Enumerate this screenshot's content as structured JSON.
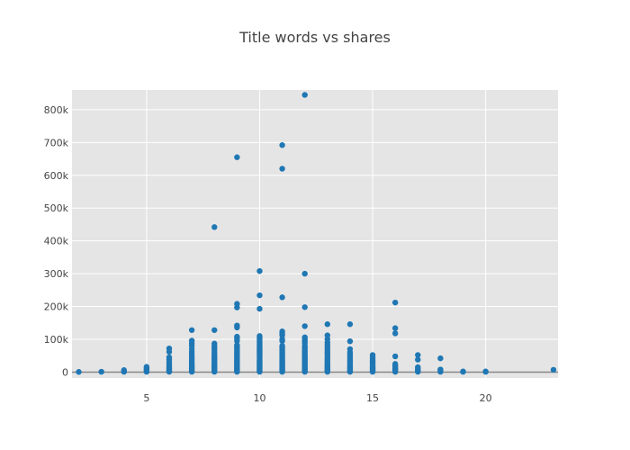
{
  "chart_data": {
    "type": "scatter",
    "title": "Title words vs shares",
    "xlabel": "",
    "ylabel": "",
    "xlim": [
      1.7,
      23.2
    ],
    "ylim": [
      -18000,
      860000
    ],
    "grid": true,
    "x_ticks": [
      5,
      10,
      15,
      20
    ],
    "x_tick_labels": [
      "5",
      "10",
      "15",
      "20"
    ],
    "y_ticks": [
      0,
      100000,
      200000,
      300000,
      400000,
      500000,
      600000,
      700000,
      800000
    ],
    "y_tick_labels": [
      "0",
      "100k",
      "200k",
      "300k",
      "400k",
      "500k",
      "600k",
      "700k",
      "800k"
    ],
    "series": [
      {
        "color": "#1f77b4",
        "points": [
          [
            2,
            500
          ],
          [
            3,
            1000
          ],
          [
            4,
            1000
          ],
          [
            4,
            3000
          ],
          [
            4,
            6000
          ],
          [
            5,
            1000
          ],
          [
            5,
            3000
          ],
          [
            5,
            5000
          ],
          [
            5,
            8000
          ],
          [
            5,
            12000
          ],
          [
            5,
            16000
          ],
          [
            6,
            1000
          ],
          [
            6,
            4000
          ],
          [
            6,
            8000
          ],
          [
            6,
            12000
          ],
          [
            6,
            17000
          ],
          [
            6,
            23000
          ],
          [
            6,
            30000
          ],
          [
            6,
            38000
          ],
          [
            6,
            45000
          ],
          [
            6,
            62000
          ],
          [
            6,
            72000
          ],
          [
            7,
            1000
          ],
          [
            7,
            4000
          ],
          [
            7,
            8000
          ],
          [
            7,
            12000
          ],
          [
            7,
            16000
          ],
          [
            7,
            20000
          ],
          [
            7,
            25000
          ],
          [
            7,
            30000
          ],
          [
            7,
            36000
          ],
          [
            7,
            42000
          ],
          [
            7,
            48000
          ],
          [
            7,
            55000
          ],
          [
            7,
            62000
          ],
          [
            7,
            70000
          ],
          [
            7,
            80000
          ],
          [
            7,
            88000
          ],
          [
            7,
            96000
          ],
          [
            7,
            128000
          ],
          [
            8,
            1000
          ],
          [
            8,
            3000
          ],
          [
            8,
            6000
          ],
          [
            8,
            9000
          ],
          [
            8,
            12000
          ],
          [
            8,
            15000
          ],
          [
            8,
            18000
          ],
          [
            8,
            21000
          ],
          [
            8,
            25000
          ],
          [
            8,
            29000
          ],
          [
            8,
            33000
          ],
          [
            8,
            37000
          ],
          [
            8,
            41000
          ],
          [
            8,
            46000
          ],
          [
            8,
            51000
          ],
          [
            8,
            56000
          ],
          [
            8,
            62000
          ],
          [
            8,
            68000
          ],
          [
            8,
            74000
          ],
          [
            8,
            80000
          ],
          [
            8,
            87000
          ],
          [
            8,
            128000
          ],
          [
            8,
            442000
          ],
          [
            9,
            1000
          ],
          [
            9,
            3000
          ],
          [
            9,
            6000
          ],
          [
            9,
            9000
          ],
          [
            9,
            12000
          ],
          [
            9,
            15000
          ],
          [
            9,
            18000
          ],
          [
            9,
            21000
          ],
          [
            9,
            24000
          ],
          [
            9,
            27000
          ],
          [
            9,
            30000
          ],
          [
            9,
            34000
          ],
          [
            9,
            38000
          ],
          [
            9,
            42000
          ],
          [
            9,
            46000
          ],
          [
            9,
            50000
          ],
          [
            9,
            54000
          ],
          [
            9,
            58000
          ],
          [
            9,
            62000
          ],
          [
            9,
            66000
          ],
          [
            9,
            70000
          ],
          [
            9,
            74000
          ],
          [
            9,
            78000
          ],
          [
            9,
            82000
          ],
          [
            9,
            95000
          ],
          [
            9,
            102000
          ],
          [
            9,
            108000
          ],
          [
            9,
            136000
          ],
          [
            9,
            142000
          ],
          [
            9,
            197000
          ],
          [
            9,
            208000
          ],
          [
            9,
            655000
          ],
          [
            10,
            1000
          ],
          [
            10,
            3000
          ],
          [
            10,
            6000
          ],
          [
            10,
            9000
          ],
          [
            10,
            12000
          ],
          [
            10,
            15000
          ],
          [
            10,
            18000
          ],
          [
            10,
            21000
          ],
          [
            10,
            24000
          ],
          [
            10,
            27000
          ],
          [
            10,
            30000
          ],
          [
            10,
            33000
          ],
          [
            10,
            36000
          ],
          [
            10,
            40000
          ],
          [
            10,
            44000
          ],
          [
            10,
            48000
          ],
          [
            10,
            52000
          ],
          [
            10,
            56000
          ],
          [
            10,
            60000
          ],
          [
            10,
            64000
          ],
          [
            10,
            68000
          ],
          [
            10,
            72000
          ],
          [
            10,
            76000
          ],
          [
            10,
            80000
          ],
          [
            10,
            84000
          ],
          [
            10,
            90000
          ],
          [
            10,
            95000
          ],
          [
            10,
            100000
          ],
          [
            10,
            105000
          ],
          [
            10,
            110000
          ],
          [
            10,
            193000
          ],
          [
            10,
            234000
          ],
          [
            10,
            308000
          ],
          [
            11,
            1000
          ],
          [
            11,
            3000
          ],
          [
            11,
            6000
          ],
          [
            11,
            9000
          ],
          [
            11,
            12000
          ],
          [
            11,
            15000
          ],
          [
            11,
            18000
          ],
          [
            11,
            21000
          ],
          [
            11,
            24000
          ],
          [
            11,
            27000
          ],
          [
            11,
            30000
          ],
          [
            11,
            34000
          ],
          [
            11,
            38000
          ],
          [
            11,
            42000
          ],
          [
            11,
            46000
          ],
          [
            11,
            50000
          ],
          [
            11,
            54000
          ],
          [
            11,
            58000
          ],
          [
            11,
            62000
          ],
          [
            11,
            66000
          ],
          [
            11,
            70000
          ],
          [
            11,
            75000
          ],
          [
            11,
            80000
          ],
          [
            11,
            95000
          ],
          [
            11,
            100000
          ],
          [
            11,
            112000
          ],
          [
            11,
            118000
          ],
          [
            11,
            124000
          ],
          [
            11,
            228000
          ],
          [
            11,
            620000
          ],
          [
            11,
            692000
          ],
          [
            12,
            1000
          ],
          [
            12,
            3000
          ],
          [
            12,
            6000
          ],
          [
            12,
            9000
          ],
          [
            12,
            12000
          ],
          [
            12,
            15000
          ],
          [
            12,
            18000
          ],
          [
            12,
            22000
          ],
          [
            12,
            26000
          ],
          [
            12,
            30000
          ],
          [
            12,
            34000
          ],
          [
            12,
            38000
          ],
          [
            12,
            42000
          ],
          [
            12,
            46000
          ],
          [
            12,
            50000
          ],
          [
            12,
            55000
          ],
          [
            12,
            60000
          ],
          [
            12,
            65000
          ],
          [
            12,
            70000
          ],
          [
            12,
            75000
          ],
          [
            12,
            80000
          ],
          [
            12,
            88000
          ],
          [
            12,
            94000
          ],
          [
            12,
            100000
          ],
          [
            12,
            106000
          ],
          [
            12,
            140000
          ],
          [
            12,
            198000
          ],
          [
            12,
            300000
          ],
          [
            12,
            845000
          ],
          [
            13,
            1000
          ],
          [
            13,
            3000
          ],
          [
            13,
            6000
          ],
          [
            13,
            9000
          ],
          [
            13,
            12000
          ],
          [
            13,
            16000
          ],
          [
            13,
            20000
          ],
          [
            13,
            24000
          ],
          [
            13,
            28000
          ],
          [
            13,
            33000
          ],
          [
            13,
            38000
          ],
          [
            13,
            44000
          ],
          [
            13,
            50000
          ],
          [
            13,
            56000
          ],
          [
            13,
            62000
          ],
          [
            13,
            68000
          ],
          [
            13,
            75000
          ],
          [
            13,
            82000
          ],
          [
            13,
            90000
          ],
          [
            13,
            100000
          ],
          [
            13,
            112000
          ],
          [
            13,
            146000
          ],
          [
            14,
            1000
          ],
          [
            14,
            3000
          ],
          [
            14,
            6000
          ],
          [
            14,
            9000
          ],
          [
            14,
            12000
          ],
          [
            14,
            16000
          ],
          [
            14,
            20000
          ],
          [
            14,
            25000
          ],
          [
            14,
            30000
          ],
          [
            14,
            35000
          ],
          [
            14,
            41000
          ],
          [
            14,
            47000
          ],
          [
            14,
            53000
          ],
          [
            14,
            60000
          ],
          [
            14,
            70000
          ],
          [
            14,
            94000
          ],
          [
            14,
            146000
          ],
          [
            15,
            1000
          ],
          [
            15,
            3000
          ],
          [
            15,
            6000
          ],
          [
            15,
            9000
          ],
          [
            15,
            12000
          ],
          [
            15,
            15000
          ],
          [
            15,
            18000
          ],
          [
            15,
            22000
          ],
          [
            15,
            26000
          ],
          [
            15,
            30000
          ],
          [
            15,
            35000
          ],
          [
            15,
            40000
          ],
          [
            15,
            45000
          ],
          [
            15,
            52000
          ],
          [
            16,
            1000
          ],
          [
            16,
            3000
          ],
          [
            16,
            6000
          ],
          [
            16,
            9000
          ],
          [
            16,
            12000
          ],
          [
            16,
            16000
          ],
          [
            16,
            20000
          ],
          [
            16,
            25000
          ],
          [
            16,
            48000
          ],
          [
            16,
            118000
          ],
          [
            16,
            134000
          ],
          [
            16,
            212000
          ],
          [
            17,
            1000
          ],
          [
            17,
            3000
          ],
          [
            17,
            6000
          ],
          [
            17,
            10000
          ],
          [
            17,
            15000
          ],
          [
            17,
            38000
          ],
          [
            17,
            52000
          ],
          [
            18,
            1000
          ],
          [
            18,
            4000
          ],
          [
            18,
            8000
          ],
          [
            18,
            42000
          ],
          [
            19,
            1000
          ],
          [
            19,
            2000
          ],
          [
            20,
            1000
          ],
          [
            20,
            2000
          ],
          [
            23,
            7000
          ]
        ]
      }
    ]
  }
}
